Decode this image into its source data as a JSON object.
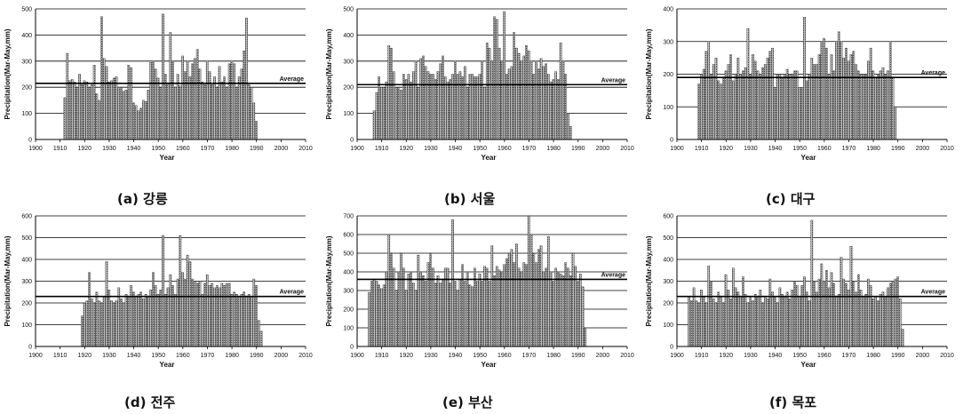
{
  "chart_data": [
    {
      "type": "bar",
      "caption": "(a) 강릉",
      "xlabel": "Year",
      "ylabel": "Precipitation(Mar-May,mm)",
      "xlim": [
        1900,
        2010
      ],
      "ylim": [
        0,
        500
      ],
      "xticks": [
        1900,
        1910,
        1920,
        1930,
        1940,
        1950,
        1960,
        1970,
        1980,
        1990,
        2000,
        2010
      ],
      "yticks": [
        0,
        100,
        200,
        300,
        400,
        500
      ],
      "grid": true,
      "average_label": "Average",
      "average": 215,
      "start_year": 1912,
      "values": [
        160,
        330,
        225,
        230,
        220,
        200,
        250,
        210,
        225,
        220,
        200,
        210,
        285,
        175,
        150,
        470,
        310,
        280,
        220,
        225,
        235,
        240,
        195,
        200,
        185,
        190,
        285,
        275,
        140,
        130,
        110,
        120,
        150,
        145,
        190,
        295,
        300,
        270,
        235,
        200,
        480,
        250,
        215,
        410,
        300,
        200,
        250,
        205,
        320,
        260,
        300,
        240,
        290,
        310,
        345,
        270,
        220,
        210,
        300,
        260,
        210,
        240,
        200,
        280,
        220,
        240,
        200,
        290,
        300,
        290,
        200,
        240,
        270,
        340,
        465,
        210,
        200,
        140,
        70
      ]
    },
    {
      "type": "bar",
      "caption": "(b) 서울",
      "xlabel": "Year",
      "ylabel": "Precipitation(Mar-May,mm)",
      "xlim": [
        1900,
        2010
      ],
      "ylim": [
        0,
        500
      ],
      "xticks": [
        1900,
        1910,
        1920,
        1930,
        1940,
        1950,
        1960,
        1970,
        1980,
        1990,
        2000,
        2010
      ],
      "yticks": [
        0,
        100,
        200,
        300,
        400,
        500
      ],
      "grid": true,
      "average_label": "Average",
      "average": 210,
      "start_year": 1907,
      "values": [
        110,
        180,
        240,
        200,
        200,
        220,
        360,
        350,
        260,
        200,
        200,
        190,
        250,
        230,
        250,
        220,
        260,
        300,
        200,
        310,
        320,
        280,
        260,
        250,
        250,
        230,
        260,
        290,
        320,
        240,
        220,
        230,
        250,
        300,
        250,
        260,
        240,
        280,
        200,
        250,
        250,
        240,
        240,
        250,
        300,
        200,
        370,
        350,
        300,
        470,
        460,
        350,
        300,
        490,
        250,
        270,
        280,
        410,
        350,
        330,
        300,
        320,
        360,
        340,
        300,
        250,
        300,
        270,
        310,
        280,
        290,
        250,
        220,
        230,
        260,
        230,
        370,
        300,
        250,
        100,
        50
      ]
    },
    {
      "type": "bar",
      "caption": "(c) 대구",
      "xlabel": "Year",
      "ylabel": "Precipitation(Mar-May,mm)",
      "xlim": [
        1900,
        2010
      ],
      "ylim": [
        0,
        400
      ],
      "xticks": [
        1900,
        1910,
        1920,
        1930,
        1940,
        1950,
        1960,
        1970,
        1980,
        1990,
        2000,
        2010
      ],
      "yticks": [
        0,
        100,
        200,
        300,
        400
      ],
      "grid": true,
      "average_label": "Average",
      "average": 190,
      "start_year": 1909,
      "values": [
        170,
        200,
        215,
        270,
        300,
        200,
        230,
        250,
        180,
        170,
        190,
        210,
        230,
        260,
        180,
        200,
        250,
        200,
        210,
        220,
        340,
        200,
        260,
        240,
        210,
        200,
        220,
        230,
        250,
        270,
        280,
        160,
        200,
        200,
        190,
        200,
        215,
        200,
        200,
        210,
        210,
        160,
        160,
        375,
        180,
        200,
        250,
        230,
        230,
        260,
        300,
        310,
        280,
        200,
        260,
        210,
        300,
        330,
        300,
        250,
        280,
        240,
        260,
        270,
        230,
        210,
        200,
        200,
        200,
        240,
        280,
        210,
        190,
        200,
        210,
        220,
        200,
        210,
        300,
        190,
        100
      ]
    },
    {
      "type": "bar",
      "caption": "(d) 전주",
      "xlabel": "Year",
      "ylabel": "Precipitation(Mar-May,mm)",
      "xlim": [
        1900,
        2010
      ],
      "ylim": [
        0,
        600
      ],
      "xticks": [
        1900,
        1910,
        1920,
        1930,
        1940,
        1950,
        1960,
        1970,
        1980,
        1990,
        2000,
        2010
      ],
      "yticks": [
        0,
        100,
        200,
        300,
        400,
        500,
        600
      ],
      "grid": true,
      "average_label": "Average",
      "average": 230,
      "start_year": 1919,
      "values": [
        140,
        200,
        210,
        340,
        220,
        200,
        250,
        210,
        200,
        230,
        390,
        260,
        210,
        200,
        210,
        270,
        220,
        200,
        240,
        230,
        280,
        250,
        230,
        240,
        250,
        220,
        240,
        230,
        260,
        340,
        280,
        240,
        260,
        510,
        240,
        270,
        330,
        280,
        240,
        310,
        510,
        340,
        310,
        420,
        390,
        310,
        300,
        290,
        300,
        240,
        290,
        330,
        280,
        290,
        270,
        280,
        270,
        290,
        280,
        290,
        290,
        240,
        250,
        240,
        230,
        240,
        250,
        230,
        240,
        230,
        310,
        280,
        120,
        70
      ]
    },
    {
      "type": "bar",
      "caption": "(e) 부산",
      "xlabel": "Year",
      "ylabel": "Precipitation(Mar-May,mm)",
      "xlim": [
        1900,
        2010
      ],
      "ylim": [
        0,
        700
      ],
      "xticks": [
        1900,
        1910,
        1920,
        1930,
        1940,
        1950,
        1960,
        1970,
        1980,
        1990,
        2000,
        2010
      ],
      "yticks": [
        0,
        100,
        200,
        300,
        400,
        500,
        600,
        700
      ],
      "grid": true,
      "average_label": "Average",
      "average": 360,
      "start_year": 1905,
      "values": [
        290,
        350,
        360,
        350,
        330,
        310,
        330,
        400,
        600,
        500,
        420,
        300,
        400,
        500,
        420,
        300,
        390,
        400,
        340,
        300,
        490,
        400,
        380,
        350,
        450,
        500,
        420,
        340,
        380,
        340,
        360,
        420,
        420,
        340,
        680,
        350,
        300,
        360,
        440,
        350,
        400,
        330,
        320,
        420,
        350,
        390,
        350,
        430,
        420,
        350,
        540,
        380,
        430,
        410,
        400,
        440,
        470,
        500,
        520,
        450,
        550,
        420,
        400,
        450,
        440,
        700,
        600,
        500,
        450,
        520,
        540,
        400,
        420,
        590,
        400,
        350,
        420,
        400,
        390,
        380,
        450,
        420,
        380,
        500,
        430,
        350,
        390,
        320,
        100
      ]
    },
    {
      "type": "bar",
      "caption": "(f) 목포",
      "xlabel": "Year",
      "ylabel": "Precipitation(Mar-May,mm)",
      "xlim": [
        1900,
        2010
      ],
      "ylim": [
        0,
        600
      ],
      "xticks": [
        1900,
        1910,
        1920,
        1930,
        1940,
        1950,
        1960,
        1970,
        1980,
        1990,
        2000,
        2010
      ],
      "yticks": [
        0,
        100,
        200,
        300,
        400,
        500,
        600
      ],
      "grid": true,
      "average_label": "Average",
      "average": 230,
      "start_year": 1905,
      "values": [
        230,
        210,
        270,
        210,
        200,
        260,
        230,
        200,
        370,
        300,
        220,
        200,
        250,
        230,
        200,
        330,
        260,
        220,
        360,
        270,
        250,
        230,
        320,
        240,
        200,
        230,
        210,
        240,
        230,
        260,
        200,
        230,
        220,
        310,
        250,
        230,
        200,
        270,
        240,
        230,
        250,
        220,
        260,
        300,
        280,
        230,
        280,
        320,
        250,
        210,
        580,
        300,
        250,
        310,
        380,
        300,
        350,
        270,
        340,
        290,
        230,
        240,
        410,
        310,
        290,
        260,
        460,
        300,
        250,
        330,
        260,
        230,
        240,
        310,
        280,
        220,
        230,
        210,
        240,
        250,
        230,
        270,
        290,
        300,
        310,
        320,
        220,
        80
      ]
    }
  ]
}
